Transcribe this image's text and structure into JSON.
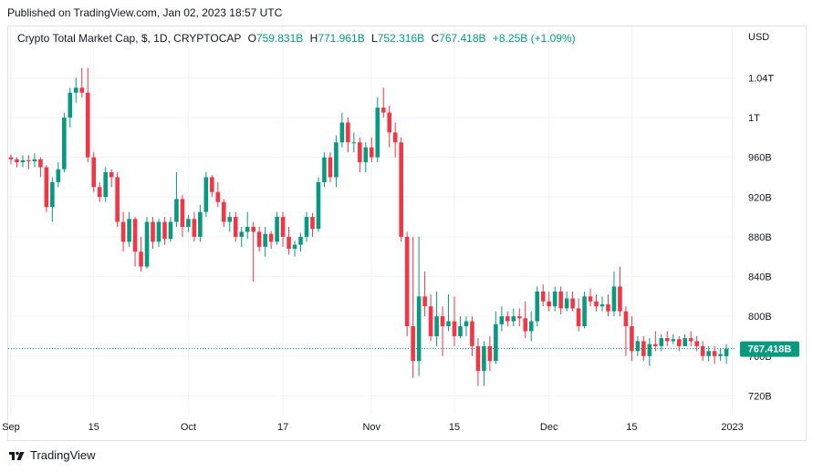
{
  "header": {
    "published": "Published on TradingView.com, Jan 02, 2023 18:57 UTC"
  },
  "legend": {
    "symbol": "Crypto Total Market Cap, $, 1D, CRYPTOCAP",
    "o_label": "O",
    "o_value": "759.831B",
    "h_label": "H",
    "h_value": "771.961B",
    "l_label": "L",
    "l_value": "752.316B",
    "c_label": "C",
    "c_value": "767.418B",
    "change": "+8.25B (+1.09%)"
  },
  "axis": {
    "currency": "USD"
  },
  "footer": {
    "brand": "TradingView"
  },
  "colors": {
    "up": "#089981",
    "down": "#f23645",
    "grid": "#f0f3fa",
    "axis_text": "#131722",
    "price_tag": "#089981"
  },
  "chart_data": {
    "type": "candlestick",
    "ylim": [
      700,
      1080
    ],
    "y_ticks": [
      {
        "value": 720,
        "label": "720B"
      },
      {
        "value": 760,
        "label": "760B"
      },
      {
        "value": 800,
        "label": "800B"
      },
      {
        "value": 840,
        "label": "840B"
      },
      {
        "value": 880,
        "label": "880B"
      },
      {
        "value": 920,
        "label": "920B"
      },
      {
        "value": 960,
        "label": "960B"
      },
      {
        "value": 1000,
        "label": "1T"
      },
      {
        "value": 1040,
        "label": "1.04T"
      }
    ],
    "x_ticks": [
      {
        "index": 0,
        "label": "Sep"
      },
      {
        "index": 14,
        "label": "15"
      },
      {
        "index": 30,
        "label": "Oct"
      },
      {
        "index": 46,
        "label": "17"
      },
      {
        "index": 61,
        "label": "Nov"
      },
      {
        "index": 75,
        "label": "15"
      },
      {
        "index": 91,
        "label": "Dec"
      },
      {
        "index": 105,
        "label": "15"
      },
      {
        "index": 122,
        "label": "2023"
      }
    ],
    "last_price": {
      "value": 767.418,
      "label": "767.418B"
    },
    "candles": [
      [
        960,
        958,
        963,
        953
      ],
      [
        958,
        955,
        960,
        950
      ],
      [
        955,
        957,
        962,
        950
      ],
      [
        957,
        956,
        962,
        948
      ],
      [
        956,
        958,
        964,
        950
      ],
      [
        958,
        950,
        960,
        940
      ],
      [
        950,
        910,
        952,
        905
      ],
      [
        910,
        935,
        940,
        895
      ],
      [
        935,
        948,
        955,
        930
      ],
      [
        948,
        1000,
        1005,
        945
      ],
      [
        1000,
        1025,
        1030,
        990
      ],
      [
        1025,
        1030,
        1040,
        1015
      ],
      [
        1030,
        1025,
        1050,
        1020
      ],
      [
        1025,
        960,
        1050,
        955
      ],
      [
        960,
        930,
        965,
        925
      ],
      [
        930,
        920,
        935,
        915
      ],
      [
        920,
        945,
        950,
        915
      ],
      [
        945,
        940,
        948,
        930
      ],
      [
        940,
        895,
        945,
        890
      ],
      [
        895,
        875,
        905,
        865
      ],
      [
        875,
        898,
        905,
        870
      ],
      [
        898,
        865,
        900,
        850
      ],
      [
        865,
        850,
        880,
        845
      ],
      [
        850,
        895,
        900,
        848
      ],
      [
        895,
        875,
        900,
        868
      ],
      [
        875,
        895,
        898,
        870
      ],
      [
        895,
        878,
        900,
        872
      ],
      [
        878,
        895,
        900,
        875
      ],
      [
        895,
        918,
        945,
        890
      ],
      [
        918,
        890,
        922,
        880
      ],
      [
        890,
        898,
        902,
        885
      ],
      [
        898,
        880,
        905,
        875
      ],
      [
        880,
        905,
        912,
        875
      ],
      [
        905,
        940,
        945,
        900
      ],
      [
        940,
        925,
        942,
        920
      ],
      [
        925,
        915,
        935,
        910
      ],
      [
        915,
        895,
        918,
        890
      ],
      [
        895,
        900,
        905,
        885
      ],
      [
        900,
        880,
        905,
        875
      ],
      [
        880,
        885,
        890,
        870
      ],
      [
        885,
        890,
        905,
        878
      ],
      [
        890,
        885,
        895,
        835
      ],
      [
        885,
        870,
        890,
        865
      ],
      [
        870,
        883,
        890,
        860
      ],
      [
        883,
        875,
        886,
        868
      ],
      [
        875,
        900,
        905,
        872
      ],
      [
        900,
        880,
        905,
        870
      ],
      [
        880,
        868,
        890,
        862
      ],
      [
        868,
        872,
        876,
        860
      ],
      [
        872,
        880,
        884,
        865
      ],
      [
        880,
        900,
        905,
        875
      ],
      [
        900,
        888,
        904,
        880
      ],
      [
        888,
        935,
        940,
        885
      ],
      [
        935,
        960,
        965,
        930
      ],
      [
        960,
        940,
        965,
        935
      ],
      [
        940,
        975,
        982,
        930
      ],
      [
        975,
        995,
        1005,
        970
      ],
      [
        995,
        975,
        1000,
        965
      ],
      [
        975,
        975,
        985,
        965
      ],
      [
        975,
        955,
        980,
        945
      ],
      [
        955,
        970,
        975,
        945
      ],
      [
        970,
        960,
        980,
        955
      ],
      [
        960,
        1010,
        1020,
        955
      ],
      [
        1010,
        1005,
        1030,
        1000
      ],
      [
        1005,
        985,
        1012,
        970
      ],
      [
        985,
        975,
        995,
        960
      ],
      [
        975,
        880,
        980,
        875
      ],
      [
        880,
        790,
        885,
        780
      ],
      [
        790,
        755,
        880,
        738
      ],
      [
        755,
        820,
        880,
        740
      ],
      [
        820,
        810,
        845,
        800
      ],
      [
        810,
        780,
        822,
        775
      ],
      [
        780,
        800,
        825,
        770
      ],
      [
        800,
        790,
        810,
        760
      ],
      [
        790,
        795,
        822,
        785
      ],
      [
        795,
        780,
        820,
        770
      ],
      [
        780,
        790,
        800,
        778
      ],
      [
        790,
        795,
        800,
        780
      ],
      [
        795,
        770,
        800,
        760
      ],
      [
        770,
        745,
        778,
        730
      ],
      [
        745,
        770,
        775,
        730
      ],
      [
        770,
        755,
        780,
        745
      ],
      [
        755,
        792,
        805,
        752
      ],
      [
        792,
        800,
        810,
        785
      ],
      [
        800,
        795,
        805,
        790
      ],
      [
        795,
        800,
        808,
        790
      ],
      [
        800,
        798,
        808,
        790
      ],
      [
        798,
        785,
        815,
        778
      ],
      [
        785,
        795,
        805,
        775
      ],
      [
        795,
        825,
        830,
        790
      ],
      [
        825,
        815,
        832,
        810
      ],
      [
        815,
        810,
        825,
        805
      ],
      [
        810,
        825,
        830,
        805
      ],
      [
        825,
        808,
        830,
        802
      ],
      [
        808,
        818,
        825,
        805
      ],
      [
        818,
        808,
        825,
        805
      ],
      [
        808,
        790,
        818,
        785
      ],
      [
        790,
        820,
        825,
        788
      ],
      [
        820,
        815,
        828,
        810
      ],
      [
        815,
        810,
        822,
        805
      ],
      [
        810,
        812,
        820,
        805
      ],
      [
        812,
        805,
        822,
        800
      ],
      [
        805,
        830,
        845,
        800
      ],
      [
        830,
        805,
        850,
        800
      ],
      [
        805,
        790,
        810,
        760
      ],
      [
        790,
        765,
        800,
        755
      ],
      [
        765,
        775,
        780,
        760
      ],
      [
        775,
        760,
        780,
        755
      ],
      [
        760,
        772,
        778,
        750
      ],
      [
        772,
        770,
        785,
        765
      ],
      [
        770,
        778,
        782,
        765
      ],
      [
        778,
        775,
        785,
        770
      ],
      [
        775,
        777,
        782,
        772
      ],
      [
        777,
        770,
        780,
        765
      ],
      [
        770,
        778,
        782,
        770
      ],
      [
        778,
        775,
        785,
        770
      ],
      [
        775,
        770,
        780,
        765
      ],
      [
        770,
        760,
        775,
        755
      ],
      [
        760,
        765,
        770,
        755
      ],
      [
        765,
        760,
        770,
        752
      ],
      [
        760,
        762,
        768,
        755
      ],
      [
        759.831,
        767.418,
        771.961,
        752.316
      ]
    ]
  }
}
